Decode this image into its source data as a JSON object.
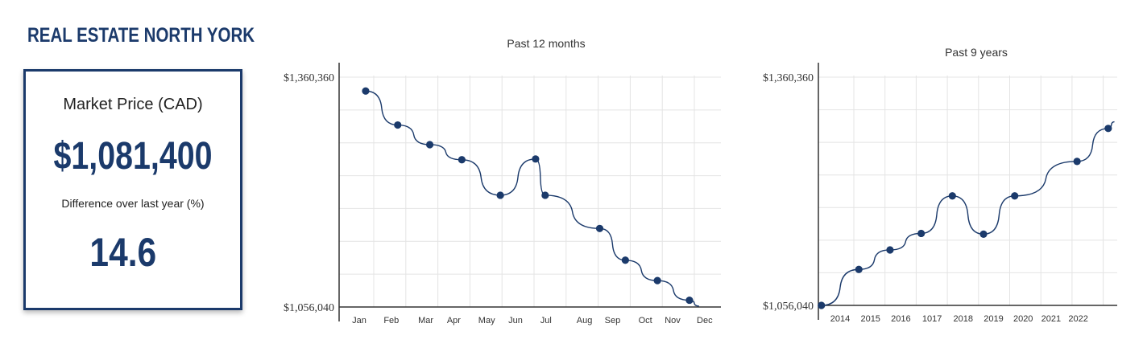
{
  "header": {
    "title": "REAL ESTATE NORTH YORK"
  },
  "kpi": {
    "label": "Market Price (CAD)",
    "value": "$1,081,400",
    "diff_label": "Difference over last year (%)",
    "diff_value": "14.6"
  },
  "colors": {
    "primary": "#1b3a6b",
    "grid": "#e4e4e4",
    "axis": "#333333"
  },
  "chart_data": [
    {
      "type": "line",
      "title": "Past 12 months",
      "xlabel": "",
      "ylabel": "",
      "y_tick_labels": [
        "$1,360,360",
        "$1,056,040"
      ],
      "ylim": [
        1056040,
        1360360
      ],
      "grid": true,
      "categories": [
        "Jan",
        "Feb",
        "Mar",
        "Apr",
        "May",
        "Jun",
        "Jul",
        "Aug",
        "Sep",
        "Oct",
        "Nov",
        "Dec"
      ],
      "points": [
        {
          "x": 0.2,
          "y": 1342000
        },
        {
          "x": 1.2,
          "y": 1297000
        },
        {
          "x": 2.2,
          "y": 1271000
        },
        {
          "x": 3.2,
          "y": 1251000
        },
        {
          "x": 4.4,
          "y": 1204000
        },
        {
          "x": 5.5,
          "y": 1252000
        },
        {
          "x": 5.8,
          "y": 1204000
        },
        {
          "x": 7.5,
          "y": 1160000
        },
        {
          "x": 8.3,
          "y": 1118000
        },
        {
          "x": 9.3,
          "y": 1091000
        },
        {
          "x": 10.3,
          "y": 1065000
        }
      ],
      "line_extends_to_x": 10.6
    },
    {
      "type": "line",
      "title": "Past 9 years",
      "xlabel": "",
      "ylabel": "",
      "y_tick_labels": [
        "$1,360,360",
        "$1,056,040"
      ],
      "ylim": [
        1056040,
        1360360
      ],
      "grid": true,
      "categories": [
        "2014",
        "2015",
        "2016",
        "1017",
        "2018",
        "2019",
        "2020",
        "2021",
        "2022"
      ],
      "points": [
        {
          "x": -0.6,
          "y": 1056040
        },
        {
          "x": 0.6,
          "y": 1104000
        },
        {
          "x": 1.6,
          "y": 1130000
        },
        {
          "x": 2.6,
          "y": 1152000
        },
        {
          "x": 3.6,
          "y": 1202000
        },
        {
          "x": 4.6,
          "y": 1151000
        },
        {
          "x": 5.6,
          "y": 1202000
        },
        {
          "x": 7.6,
          "y": 1248000
        },
        {
          "x": 8.6,
          "y": 1292000
        }
      ],
      "line_extends_to_x": 8.8
    }
  ]
}
